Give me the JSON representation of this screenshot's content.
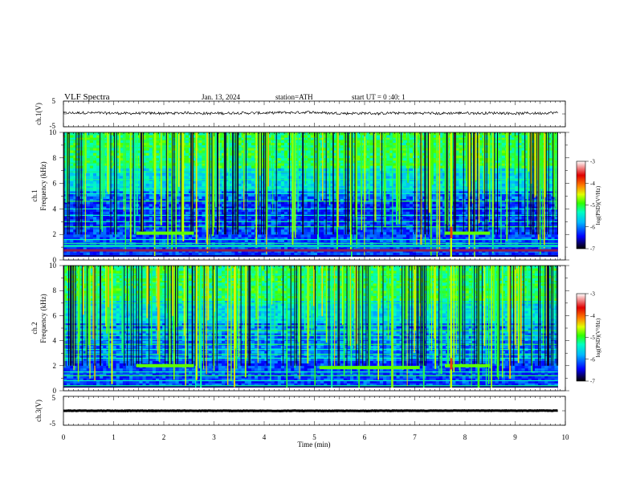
{
  "header": {
    "title": "VLF  Spectra",
    "date": "Jan. 13, 2024",
    "station": "station=ATH",
    "start_ut": "start  UT  =    0  :40: 1"
  },
  "chart_data": [
    {
      "type": "line",
      "panel": "ch1-voltage",
      "ylabel": "ch.1(V)",
      "ylim": [
        -5,
        5
      ],
      "y_tick_labels": [
        "5",
        "-5"
      ],
      "xlim": [
        0,
        10
      ],
      "series_color": "#000000",
      "trace_level_v": 0.3,
      "noise_amplitude_v": 1.0
    },
    {
      "type": "heatmap",
      "panel": "ch1-spectrogram",
      "ylabel_line1": "ch.1",
      "ylabel_line2": "Frequency  (kHz)",
      "ylim": [
        0,
        10
      ],
      "y_tick_labels": [
        "0",
        "2",
        "4",
        "6",
        "8",
        "10"
      ],
      "xlim": [
        0,
        9.85
      ],
      "colorbar": {
        "label": "log(PSD)(V²/Hz)",
        "range": [
          -7,
          -3
        ],
        "tick_labels": [
          "-3",
          "-4",
          "-5",
          "-6",
          "-7"
        ]
      },
      "features": [
        {
          "type": "band",
          "f_khz": 2.1,
          "t_start": 1.45,
          "t_end": 2.6
        },
        {
          "type": "band",
          "f_khz": 2.1,
          "t_start": 7.6,
          "t_end": 8.5
        },
        {
          "type": "line",
          "f_khz": 0.75,
          "color": "#8e1b4f"
        },
        {
          "type": "line",
          "f_khz": 1.1,
          "color": "#00d0c0"
        },
        {
          "type": "burst",
          "t": 7.72
        }
      ]
    },
    {
      "type": "heatmap",
      "panel": "ch2-spectrogram",
      "ylabel_line1": "ch.2",
      "ylabel_line2": "Frequency  (kHz)",
      "ylim": [
        0,
        10
      ],
      "y_tick_labels": [
        "0",
        "2",
        "4",
        "6",
        "8",
        "10"
      ],
      "xlim": [
        0,
        9.85
      ],
      "colorbar": {
        "label": "log(PSD)(V²/Hz)",
        "range": [
          -7,
          -3
        ],
        "tick_labels": [
          "-3",
          "-4",
          "-5",
          "-6",
          "-7"
        ]
      },
      "features": [
        {
          "type": "band",
          "f_khz": 2.0,
          "t_start": 1.45,
          "t_end": 2.6
        },
        {
          "type": "band",
          "f_khz": 1.85,
          "t_start": 5.1,
          "t_end": 7.1
        },
        {
          "type": "band",
          "f_khz": 2.0,
          "t_start": 7.6,
          "t_end": 8.5
        },
        {
          "type": "burst",
          "t": 7.72
        }
      ]
    },
    {
      "type": "line",
      "panel": "ch3-voltage",
      "ylabel": "ch.3(V)",
      "ylim": [
        -5,
        5
      ],
      "y_tick_labels": [
        "5",
        "-5"
      ],
      "xlim": [
        0,
        10
      ],
      "series_color": "#000000",
      "trace_level_v": 0.0,
      "noise_amplitude_v": 0.15
    }
  ],
  "x_axis": {
    "label": "Time  (min)",
    "range": [
      0,
      10
    ],
    "tick_labels": [
      "0",
      "1",
      "2",
      "3",
      "4",
      "5",
      "6",
      "7",
      "8",
      "9",
      "10"
    ]
  }
}
